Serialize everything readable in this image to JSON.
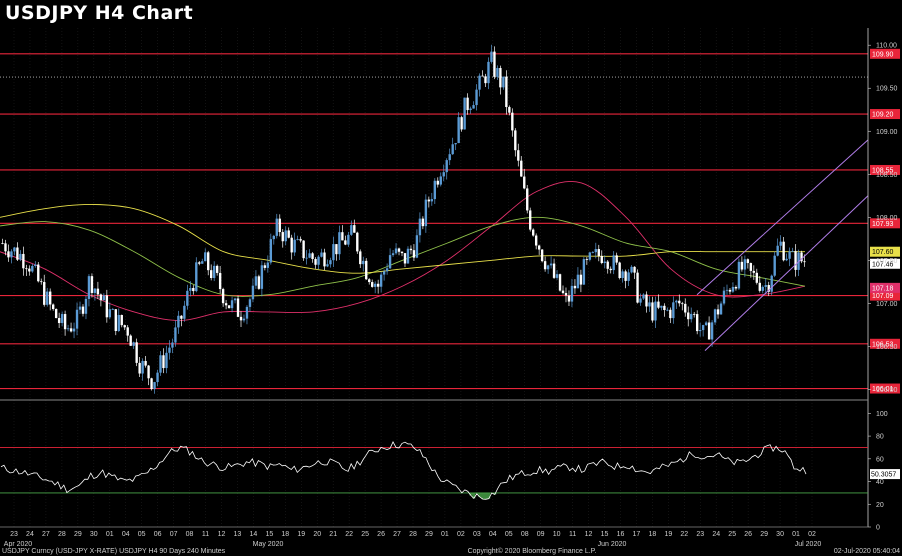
{
  "header": {
    "title": "USDJPY H4 Chart"
  },
  "colors": {
    "background": "#000000",
    "up_candle": "#5b9bd5",
    "down_candle": "#ffffff",
    "resistance_line": "#e8253a",
    "channel": "#b07de8",
    "ma_fast": "#e0306a",
    "ma_mid": "#8fc14a",
    "ma_slow": "#e8e04a",
    "rsi_line": "#ffffff",
    "rsi_bands": "#e8253a",
    "rsi_lower_band": "#4aa84a"
  },
  "chart_data": [
    {
      "type": "candlestick",
      "title": "USDJPY H4 Chart",
      "ylim": [
        105.9,
        110.2
      ],
      "y_ticks": [
        "110.00",
        "109.50",
        "109.00",
        "108.50",
        "108.00",
        "107.50",
        "107.00",
        "106.50",
        "106.00"
      ],
      "price_levels": [
        {
          "value": 109.9,
          "label": "109.90"
        },
        {
          "value": 109.2,
          "label": "109.20"
        },
        {
          "value": 108.55,
          "label": "108.55"
        },
        {
          "value": 107.93,
          "label": "107.93"
        },
        {
          "value": 107.09,
          "label": "107.09"
        },
        {
          "value": 106.53,
          "label": "106.53"
        },
        {
          "value": 106.01,
          "label": "106.01"
        }
      ],
      "dotted_level": 109.63,
      "current_price_labels": [
        {
          "value": 107.6,
          "label": "107.60",
          "color": "#e8e04a"
        },
        {
          "value": 107.46,
          "label": "107.46",
          "color": "#ffffff"
        },
        {
          "value": 107.18,
          "label": "107.18",
          "color": "#e0306a"
        }
      ],
      "x_ticks": [
        "23",
        "24",
        "27",
        "28",
        "29",
        "30",
        "01",
        "04",
        "05",
        "06",
        "07",
        "08",
        "11",
        "12",
        "13",
        "14",
        "15",
        "18",
        "19",
        "20",
        "21",
        "22",
        "25",
        "26",
        "27",
        "28",
        "29",
        "01",
        "02",
        "03",
        "04",
        "05",
        "08",
        "09",
        "10",
        "11",
        "12",
        "15",
        "16",
        "17",
        "18",
        "19",
        "22",
        "23",
        "24",
        "25",
        "26",
        "29",
        "30",
        "01",
        "02"
      ],
      "month_labels": [
        "Apr 2020",
        "May 2020",
        "Jun 2020",
        "Jul 2020"
      ],
      "ohlc_path": [
        107.7,
        107.6,
        107.5,
        107.2,
        106.9,
        106.7,
        106.8,
        107.3,
        107.0,
        106.8,
        106.7,
        106.3,
        106.1,
        106.4,
        106.7,
        107.2,
        107.5,
        107.3,
        107.0,
        106.9,
        107.1,
        107.5,
        107.9,
        107.7,
        107.6,
        107.5,
        107.6,
        107.7,
        107.8,
        107.4,
        107.2,
        107.6,
        107.5,
        107.7,
        108.2,
        108.6,
        108.9,
        109.3,
        109.5,
        109.8,
        109.5,
        108.7,
        108.0,
        107.6,
        107.3,
        107.0,
        107.3,
        107.5,
        107.6,
        107.4,
        107.4,
        107.0,
        106.9,
        106.9,
        107.0,
        106.9,
        106.6,
        106.9,
        107.2,
        107.4,
        107.3,
        107.2,
        107.7,
        107.5,
        107.5
      ],
      "moving_averages": [
        {
          "name": "",
          "color": "#e0306a",
          "values": [
            107.6,
            107.4,
            107.1,
            106.9,
            106.8,
            106.9,
            106.9,
            106.9,
            107.0,
            107.2,
            107.5,
            107.9,
            108.3,
            108.4,
            108.0,
            107.4,
            107.1,
            107.1,
            107.2
          ]
        },
        {
          "name": "",
          "color": "#8fc14a",
          "values": [
            107.9,
            107.95,
            107.85,
            107.6,
            107.3,
            107.1,
            107.1,
            107.2,
            107.3,
            107.5,
            107.7,
            107.9,
            108.0,
            107.9,
            107.7,
            107.6,
            107.4,
            107.3,
            107.2
          ]
        },
        {
          "name": "",
          "color": "#e8e04a",
          "values": [
            108.0,
            108.1,
            108.15,
            108.1,
            107.9,
            107.6,
            107.5,
            107.4,
            107.35,
            107.4,
            107.45,
            107.5,
            107.55,
            107.55,
            107.55,
            107.6,
            107.6,
            107.6,
            107.6
          ]
        }
      ]
    },
    {
      "type": "line",
      "name": "RSI",
      "ylim": [
        0,
        110
      ],
      "y_ticks": [
        "100",
        "80",
        "60",
        "40",
        "20",
        "0"
      ],
      "bands": [
        70,
        30
      ],
      "current_label": "50.3057",
      "values": [
        52,
        50,
        48,
        45,
        42,
        38,
        33,
        36,
        45,
        48,
        44,
        40,
        42,
        47,
        55,
        65,
        70,
        66,
        58,
        55,
        52,
        54,
        57,
        56,
        53,
        55,
        50,
        52,
        56,
        58,
        55,
        50,
        57,
        65,
        70,
        72,
        73,
        70,
        60,
        45,
        38,
        33,
        29,
        26,
        29,
        40,
        45,
        48,
        50,
        49,
        52,
        53,
        50,
        55,
        57,
        53,
        55,
        50,
        48,
        52,
        55,
        60,
        65,
        62,
        64,
        58,
        56,
        60,
        66,
        70,
        68,
        52,
        50
      ]
    }
  ],
  "footer": {
    "left": "USDJPY Curncy (USD-JPY X-RATE) USDJPY H4 90 Days 240 Minutes",
    "center": "Copyright© 2020 Bloomberg Finance L.P.",
    "right": "02-Jul-2020 05:40:04"
  }
}
